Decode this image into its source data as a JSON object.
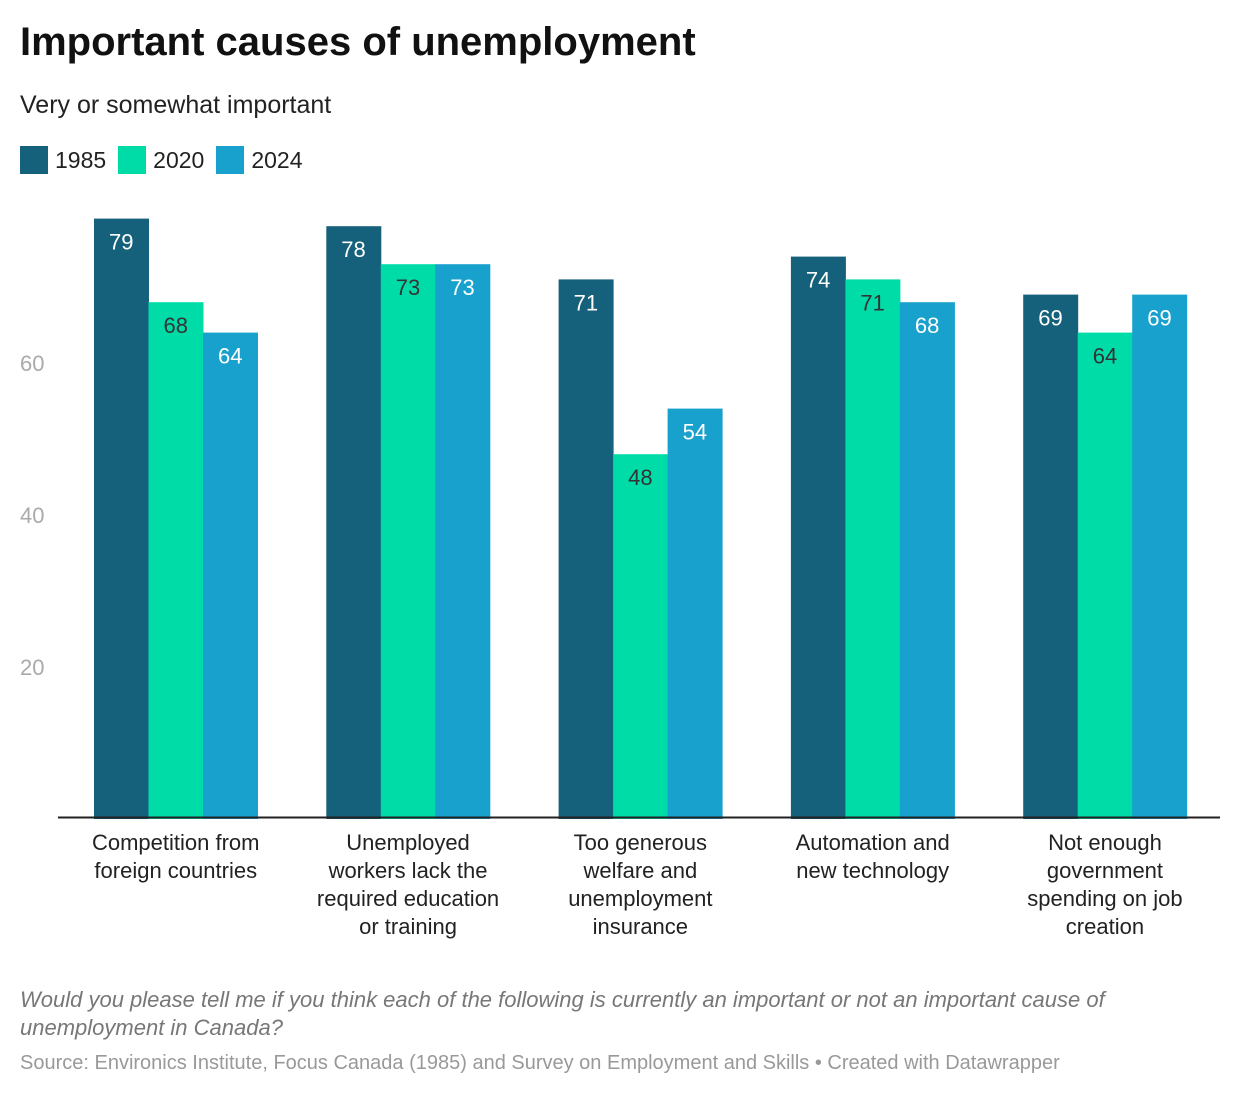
{
  "title": "Important causes of unemployment",
  "subtitle": "Very or somewhat important",
  "note": "Would you please tell me if you think each of the following is currently an important or not an important cause of unemployment in Canada?",
  "source": "Source: Environics Institute, Focus Canada (1985) and Survey on Employment and Skills • Created with Datawrapper",
  "chart_data": {
    "type": "bar",
    "title": "Important causes of unemployment",
    "categories": [
      [
        "Competition from",
        "foreign countries"
      ],
      [
        "Unemployed",
        "workers lack the",
        "required education",
        "or training"
      ],
      [
        "Too generous",
        "welfare and",
        "unemployment",
        "insurance"
      ],
      [
        "Automation and",
        "new technology"
      ],
      [
        "Not enough",
        "government",
        "spending on job",
        "creation"
      ]
    ],
    "series": [
      {
        "name": "1985",
        "color": "#15607a",
        "label_color": "#ffffff",
        "values": [
          79,
          78,
          71,
          74,
          69
        ]
      },
      {
        "name": "2020",
        "color": "#00dca8",
        "label_color": "#333333",
        "values": [
          68,
          73,
          48,
          71,
          64
        ]
      },
      {
        "name": "2024",
        "color": "#18a1cd",
        "label_color": "#ffffff",
        "values": [
          64,
          73,
          54,
          68,
          69
        ]
      }
    ],
    "yticks": [
      "20",
      "40",
      "60"
    ],
    "ytick_values": [
      20,
      40,
      60
    ],
    "ylim": [
      0,
      80
    ],
    "legend": "top-left"
  }
}
